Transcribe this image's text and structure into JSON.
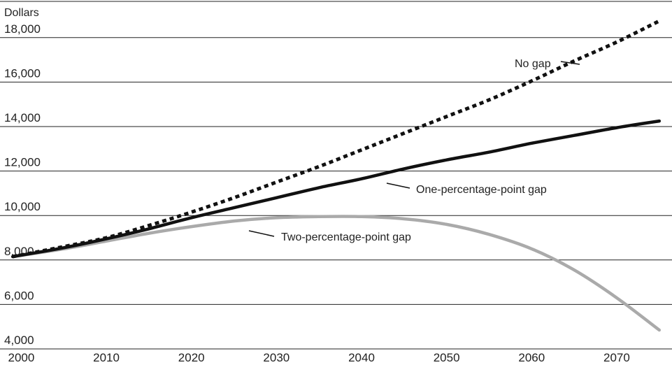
{
  "chart_data": {
    "type": "line",
    "title": "",
    "xlabel": "",
    "ylabel": "Dollars",
    "xlim": [
      1997.5,
      2076.5
    ],
    "ylim": [
      4000,
      19000
    ],
    "grid": true,
    "x_ticks": [
      2000,
      2010,
      2020,
      2030,
      2040,
      2050,
      2060,
      2070
    ],
    "x_tick_labels": [
      "2000",
      "2010",
      "2020",
      "2030",
      "2040",
      "2050",
      "2060",
      "2070"
    ],
    "y_ticks": [
      4000,
      6000,
      8000,
      10000,
      12000,
      14000,
      16000,
      18000
    ],
    "y_tick_labels": [
      "4,000",
      "6,000",
      "8,000",
      "10,000",
      "12,000",
      "14,000",
      "16,000",
      "18,000"
    ],
    "x": [
      1999,
      2005,
      2010,
      2015,
      2020,
      2025,
      2030,
      2035,
      2040,
      2045,
      2050,
      2055,
      2060,
      2065,
      2070,
      2075
    ],
    "series": [
      {
        "name": "No gap",
        "values": [
          8150,
          8600,
          9000,
          9550,
          10150,
          10800,
          11500,
          12200,
          12950,
          13700,
          14450,
          15200,
          16050,
          16950,
          17800,
          18750
        ],
        "color": "#111111",
        "style": "dotted"
      },
      {
        "name": "One-percentage-point gap",
        "values": [
          8150,
          8550,
          8950,
          9400,
          9900,
          10350,
          10800,
          11250,
          11650,
          12100,
          12500,
          12850,
          13250,
          13600,
          13950,
          14250
        ],
        "color": "#111111",
        "style": "solid"
      },
      {
        "name": "Two-percentage-point gap",
        "values": [
          8150,
          8500,
          8850,
          9200,
          9500,
          9750,
          9900,
          9950,
          9950,
          9850,
          9600,
          9150,
          8500,
          7550,
          6300,
          4850
        ],
        "color": "#aaaaaa",
        "style": "solid"
      }
    ]
  }
}
